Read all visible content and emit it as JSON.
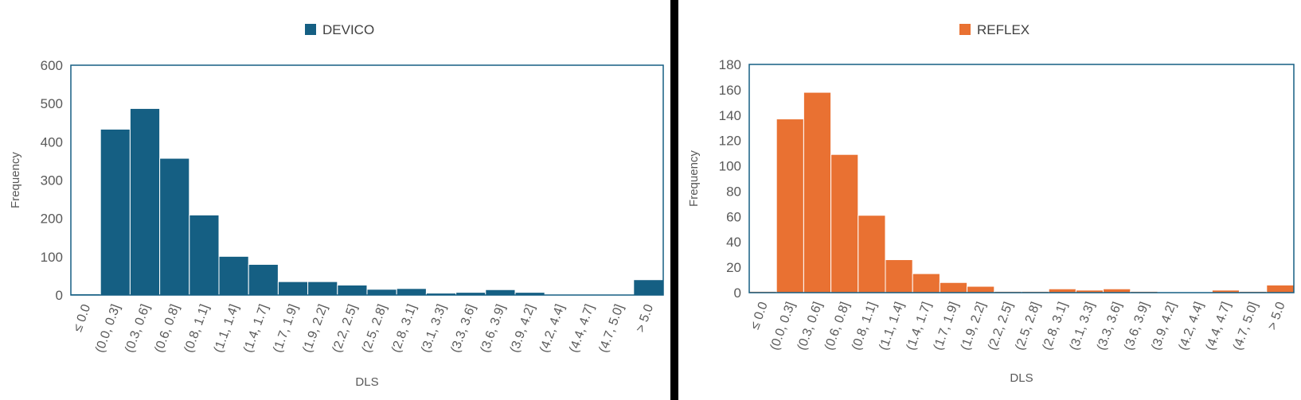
{
  "chart_data": [
    {
      "type": "bar",
      "legend": "DEVICO",
      "color": "#155f83",
      "xlabel": "DLS",
      "ylabel": "Frequency",
      "ylim": [
        0,
        600
      ],
      "yticks": [
        0,
        100,
        200,
        300,
        400,
        500,
        600
      ],
      "categories": [
        "≤ 0.0",
        "(0.0, 0.3]",
        "(0.3, 0.6]",
        "(0.6, 0.8]",
        "(0.8, 1.1]",
        "(1.1, 1.4]",
        "(1.4, 1.7]",
        "(1.7, 1.9]",
        "(1.9, 2.2]",
        "(2.2, 2.5]",
        "(2.5, 2.8]",
        "(2.8, 3.1]",
        "(3.1, 3.3]",
        "(3.3, 3.6]",
        "(3.6, 3.9]",
        "(3.9, 4.2]",
        "(4.2, 4.4]",
        "(4.4, 4.7]",
        "(4.7, 5.0]",
        "> 5.0"
      ],
      "values": [
        3,
        433,
        487,
        357,
        209,
        101,
        80,
        35,
        35,
        26,
        15,
        17,
        5,
        7,
        14,
        7,
        2,
        1,
        1,
        40
      ]
    },
    {
      "type": "bar",
      "legend": "REFLEX",
      "color": "#e97132",
      "xlabel": "DLS",
      "ylabel": "Frequency",
      "ylim": [
        0,
        180
      ],
      "yticks": [
        0,
        20,
        40,
        60,
        80,
        100,
        120,
        140,
        160,
        180
      ],
      "categories": [
        "≤ 0.0",
        "(0.0, 0.3]",
        "(0.3, 0.6]",
        "(0.6, 0.8]",
        "(0.8, 1.1]",
        "(1.1, 1.4]",
        "(1.4, 1.7]",
        "(1.7, 1.9]",
        "(1.9, 2.2]",
        "(2.2, 2.5]",
        "(2.5, 2.8]",
        "(2.8, 3.1]",
        "(3.1, 3.3]",
        "(3.3, 3.6]",
        "(3.6, 3.9]",
        "(3.9, 4.2]",
        "(4.2, 4.4]",
        "(4.4, 4.7]",
        "(4.7, 5.0]",
        "> 5.0"
      ],
      "values": [
        1,
        137,
        158,
        109,
        61,
        26,
        15,
        8,
        5,
        1,
        1,
        3,
        2,
        3,
        1,
        0,
        0,
        2,
        1,
        6
      ]
    }
  ]
}
